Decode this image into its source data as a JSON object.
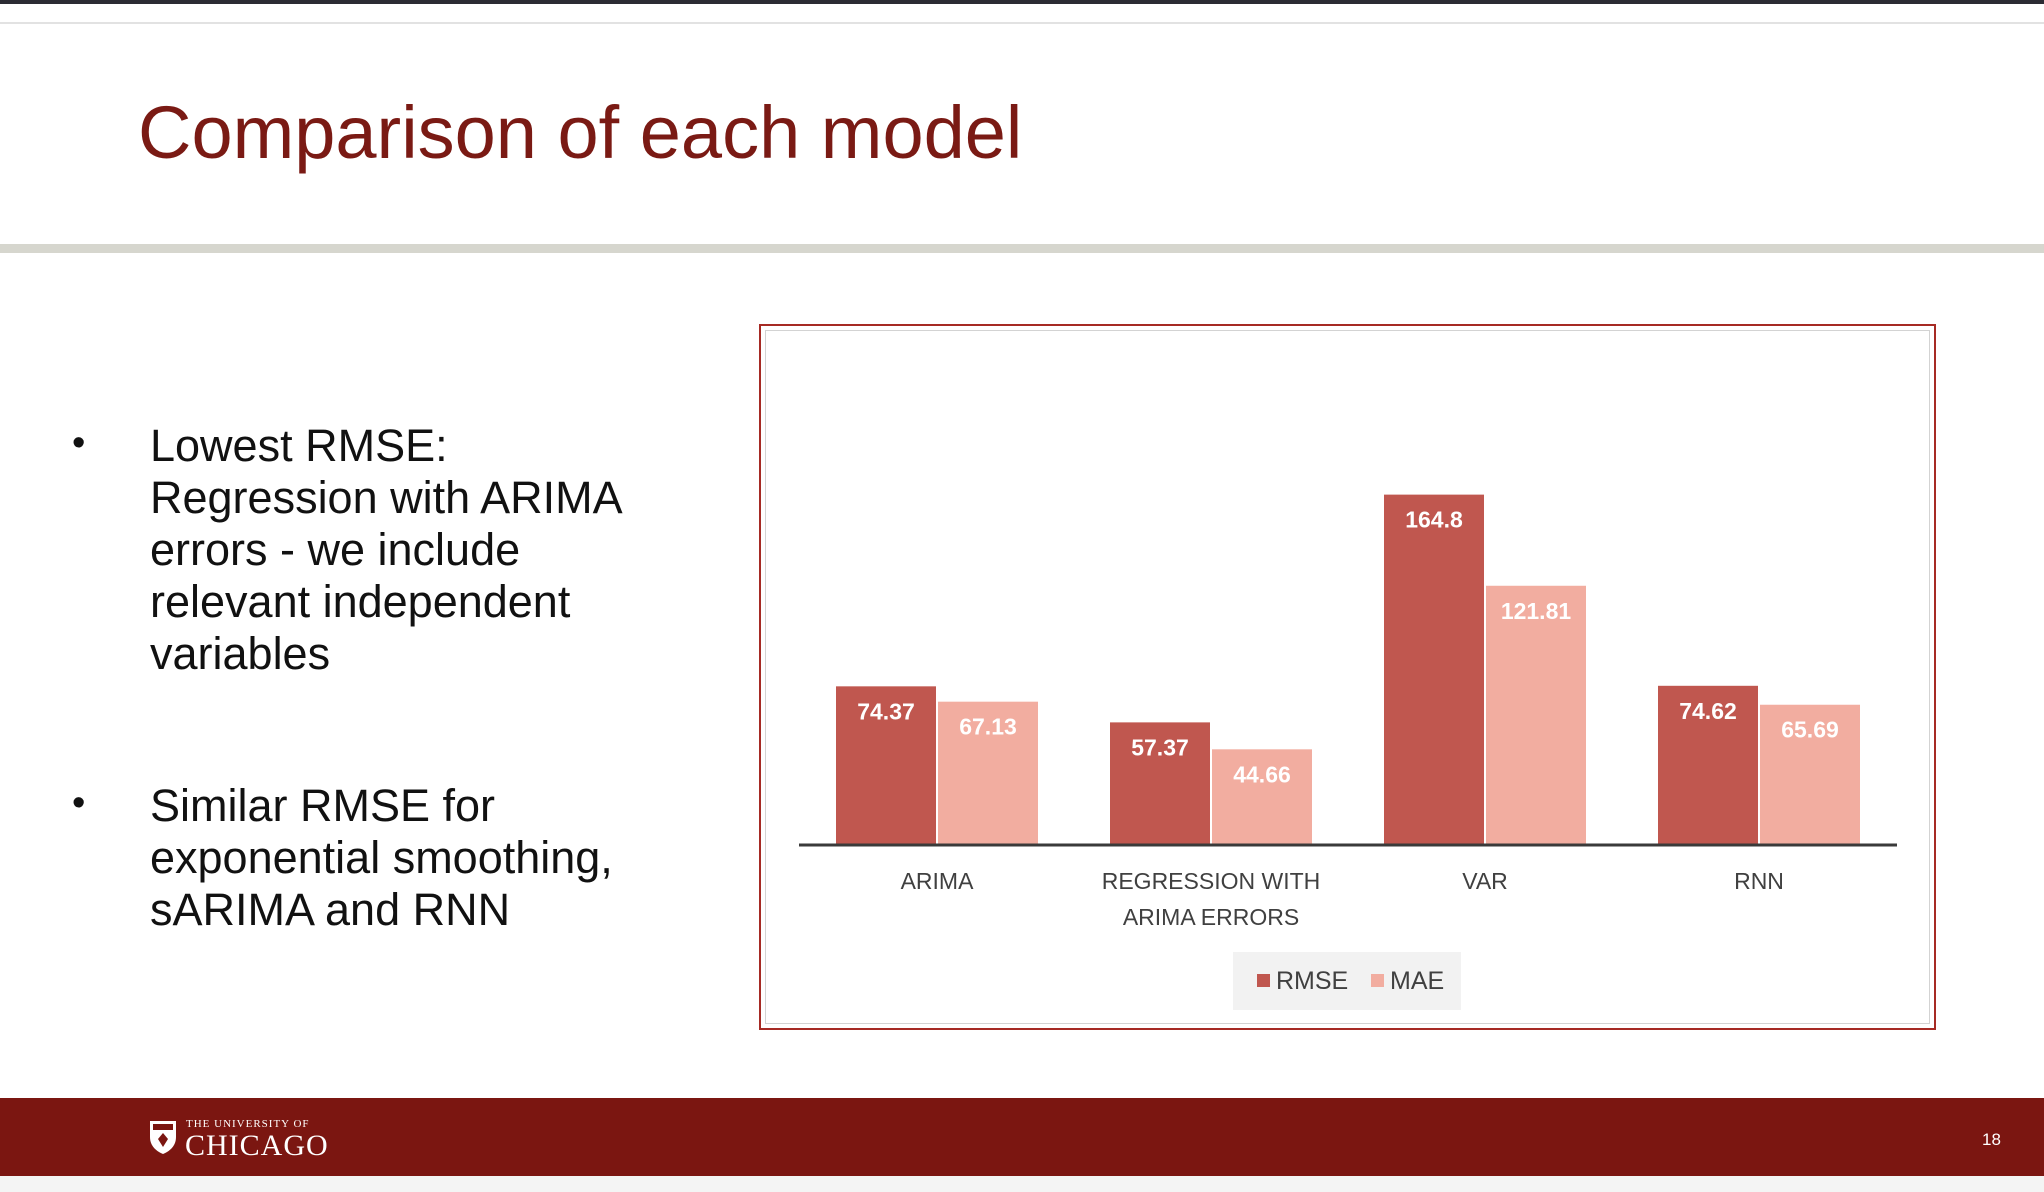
{
  "slide": {
    "title": "Comparison of each model",
    "page_number": "18"
  },
  "bullets": [
    {
      "symbol": "•",
      "text": "Lowest RMSE:\nRegression with ARIMA\nerrors - we include\nrelevant independent\nvariables"
    },
    {
      "symbol": "•",
      "text": "Similar RMSE for\nexponential smoothing,\nsARIMA and RNN"
    }
  ],
  "footer": {
    "logo_line1": "THE UNIVERSITY OF",
    "logo_line2": "CHICAGO",
    "logo_icon": "university-shield-icon"
  },
  "colors": {
    "title": "#7a1a14",
    "footer": "#7b1611",
    "rmse": "#c0574f",
    "mae": "#f2ada0",
    "frame": "#a62a24"
  },
  "chart_data": {
    "type": "bar",
    "categories": [
      [
        "ARIMA"
      ],
      [
        "REGRESSION WITH",
        "ARIMA ERRORS"
      ],
      [
        "VAR"
      ],
      [
        "RNN"
      ]
    ],
    "series": [
      {
        "name": "RMSE",
        "values": [
          74.37,
          57.37,
          164.8,
          74.62
        ],
        "labels": [
          "74.37",
          "57.37",
          "164.8",
          "74.62"
        ],
        "color": "#c0574f"
      },
      {
        "name": "MAE",
        "values": [
          67.13,
          44.66,
          121.81,
          65.69
        ],
        "labels": [
          "67.13",
          "44.66",
          "121.81",
          "65.69"
        ],
        "color": "#f2ada0"
      }
    ],
    "title": "",
    "xlabel": "",
    "ylabel": "",
    "ylim": [
      0,
      180
    ],
    "grid": false,
    "legend": "bottom-center",
    "data_labels": "inside-top"
  }
}
